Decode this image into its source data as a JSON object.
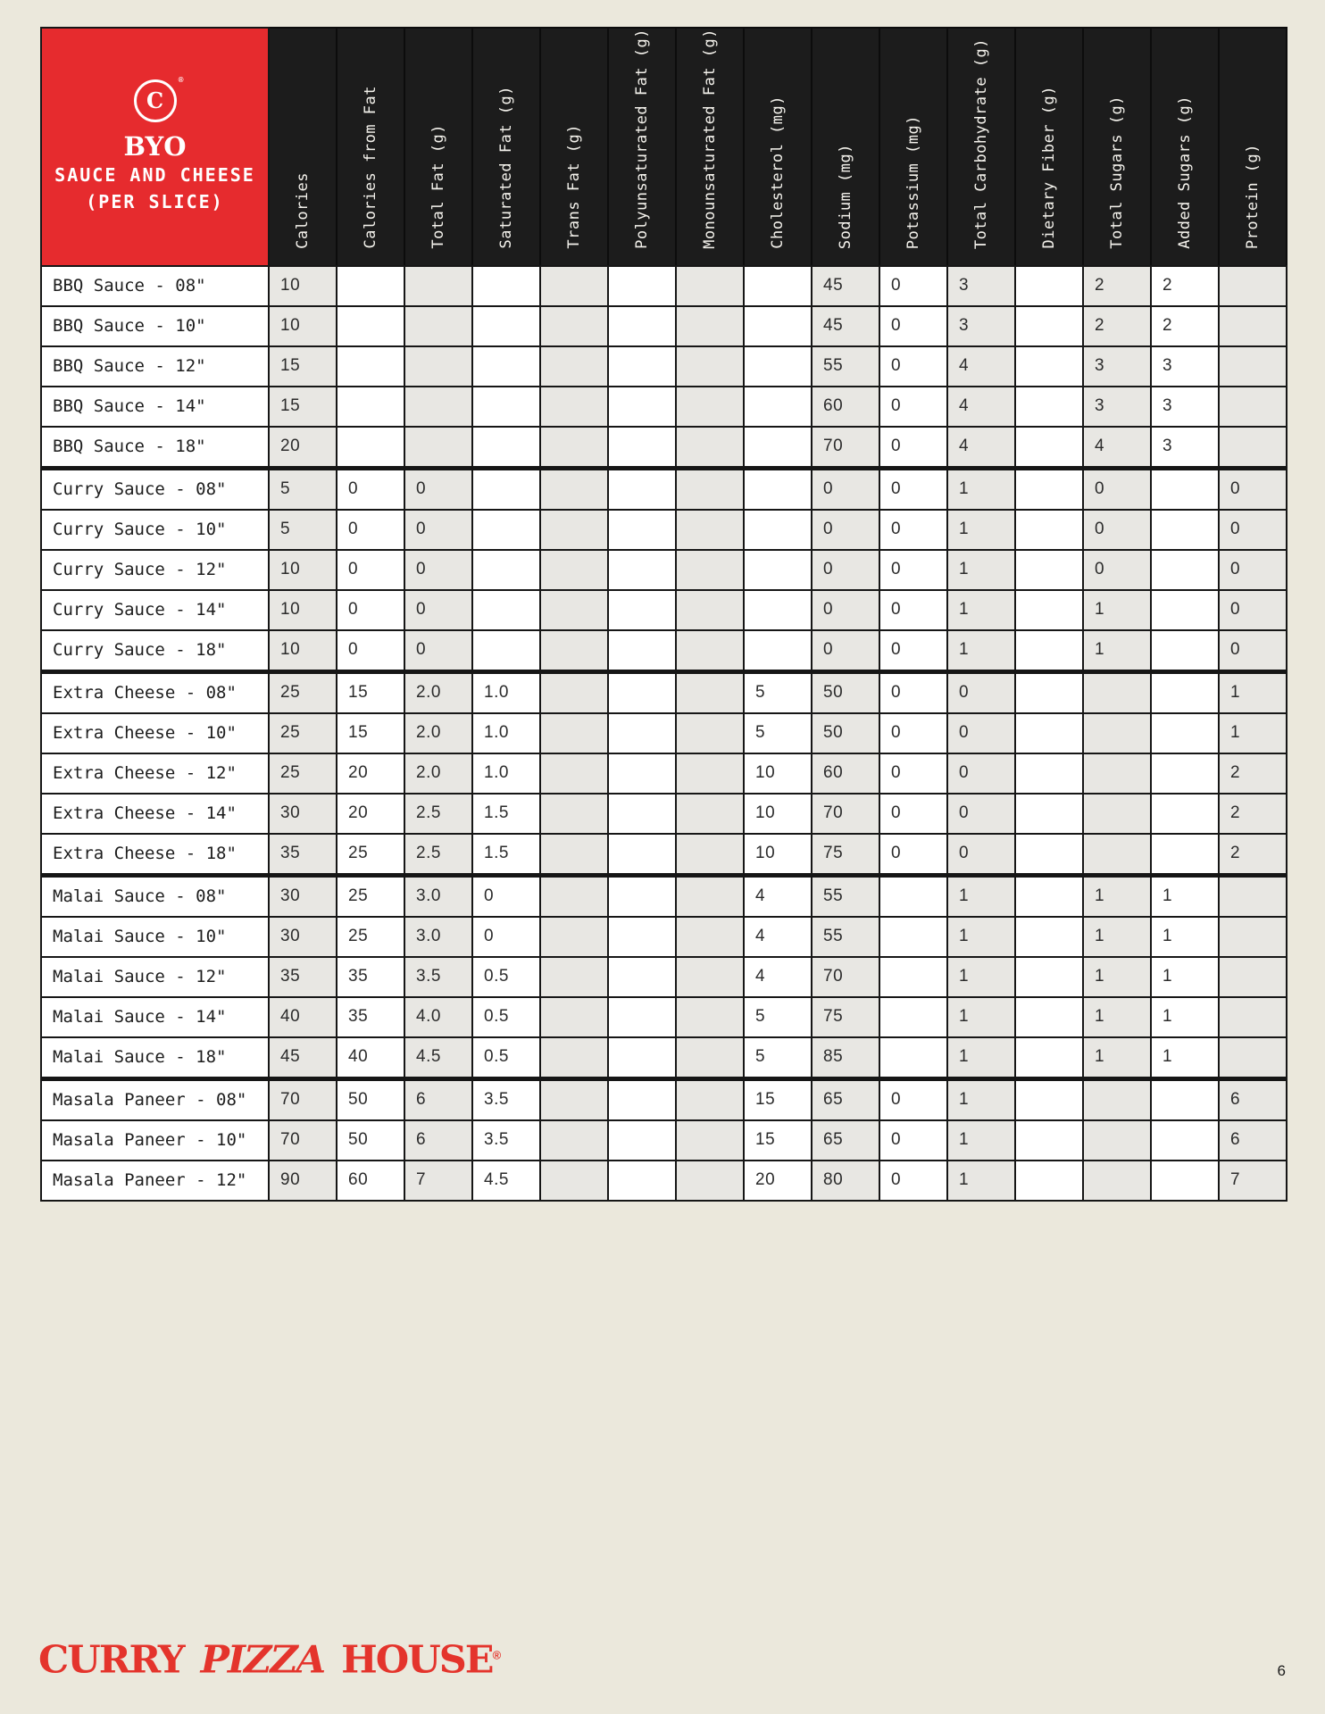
{
  "page": {
    "number": "6"
  },
  "brand": {
    "logo_glyph": "C",
    "logo_registered": "®",
    "footer_word1": "CURRY",
    "footer_word2": "PIZZA",
    "footer_word3": "HOUSE",
    "footer_registered": "®",
    "accent_red": "#e62b2e",
    "header_black": "#1c1c1c",
    "page_cream": "#ebe8dc",
    "cell_gray": "#e8e7e3"
  },
  "table": {
    "title": {
      "line1": "BYO",
      "line2": "SAUCE AND CHEESE",
      "line3": "(PER SLICE)"
    },
    "columns": [
      "Calories",
      "Calories from Fat",
      "Total Fat (g)",
      "Saturated Fat (g)",
      "Trans Fat (g)",
      "Polyunsaturated Fat (g)",
      "Monounsaturated Fat (g)",
      "Cholesterol (mg)",
      "Sodium (mg)",
      "Potassium (mg)",
      "Total Carbohydrate (g)",
      "Dietary Fiber (g)",
      "Total Sugars (g)",
      "Added Sugars (g)",
      "Protein (g)"
    ],
    "rows": [
      {
        "label": "BBQ Sauce - 08\"",
        "group_start": false,
        "values": [
          "10",
          "",
          "",
          "",
          "",
          "",
          "",
          "",
          "45",
          "0",
          "3",
          "",
          "2",
          "2",
          ""
        ]
      },
      {
        "label": "BBQ Sauce - 10\"",
        "group_start": false,
        "values": [
          "10",
          "",
          "",
          "",
          "",
          "",
          "",
          "",
          "45",
          "0",
          "3",
          "",
          "2",
          "2",
          ""
        ]
      },
      {
        "label": "BBQ Sauce - 12\"",
        "group_start": false,
        "values": [
          "15",
          "",
          "",
          "",
          "",
          "",
          "",
          "",
          "55",
          "0",
          "4",
          "",
          "3",
          "3",
          ""
        ]
      },
      {
        "label": "BBQ Sauce - 14\"",
        "group_start": false,
        "values": [
          "15",
          "",
          "",
          "",
          "",
          "",
          "",
          "",
          "60",
          "0",
          "4",
          "",
          "3",
          "3",
          ""
        ]
      },
      {
        "label": "BBQ Sauce - 18\"",
        "group_start": false,
        "values": [
          "20",
          "",
          "",
          "",
          "",
          "",
          "",
          "",
          "70",
          "0",
          "4",
          "",
          "4",
          "3",
          ""
        ]
      },
      {
        "label": "Curry Sauce - 08\"",
        "group_start": true,
        "values": [
          "5",
          "0",
          "0",
          "",
          "",
          "",
          "",
          "",
          "0",
          "0",
          "1",
          "",
          "0",
          "",
          "0"
        ]
      },
      {
        "label": "Curry Sauce - 10\"",
        "group_start": false,
        "values": [
          "5",
          "0",
          "0",
          "",
          "",
          "",
          "",
          "",
          "0",
          "0",
          "1",
          "",
          "0",
          "",
          "0"
        ]
      },
      {
        "label": "Curry Sauce - 12\"",
        "group_start": false,
        "values": [
          "10",
          "0",
          "0",
          "",
          "",
          "",
          "",
          "",
          "0",
          "0",
          "1",
          "",
          "0",
          "",
          "0"
        ]
      },
      {
        "label": "Curry Sauce - 14\"",
        "group_start": false,
        "values": [
          "10",
          "0",
          "0",
          "",
          "",
          "",
          "",
          "",
          "0",
          "0",
          "1",
          "",
          "1",
          "",
          "0"
        ]
      },
      {
        "label": "Curry Sauce - 18\"",
        "group_start": false,
        "values": [
          "10",
          "0",
          "0",
          "",
          "",
          "",
          "",
          "",
          "0",
          "0",
          "1",
          "",
          "1",
          "",
          "0"
        ]
      },
      {
        "label": "Extra Cheese - 08\"",
        "group_start": true,
        "values": [
          "25",
          "15",
          "2.0",
          "1.0",
          "",
          "",
          "",
          "5",
          "50",
          "0",
          "0",
          "",
          "",
          "",
          "1"
        ]
      },
      {
        "label": "Extra Cheese - 10\"",
        "group_start": false,
        "values": [
          "25",
          "15",
          "2.0",
          "1.0",
          "",
          "",
          "",
          "5",
          "50",
          "0",
          "0",
          "",
          "",
          "",
          "1"
        ]
      },
      {
        "label": "Extra Cheese - 12\"",
        "group_start": false,
        "values": [
          "25",
          "20",
          "2.0",
          "1.0",
          "",
          "",
          "",
          "10",
          "60",
          "0",
          "0",
          "",
          "",
          "",
          "2"
        ]
      },
      {
        "label": "Extra Cheese - 14\"",
        "group_start": false,
        "values": [
          "30",
          "20",
          "2.5",
          "1.5",
          "",
          "",
          "",
          "10",
          "70",
          "0",
          "0",
          "",
          "",
          "",
          "2"
        ]
      },
      {
        "label": "Extra Cheese - 18\"",
        "group_start": false,
        "values": [
          "35",
          "25",
          "2.5",
          "1.5",
          "",
          "",
          "",
          "10",
          "75",
          "0",
          "0",
          "",
          "",
          "",
          "2"
        ]
      },
      {
        "label": "Malai Sauce - 08\"",
        "group_start": true,
        "values": [
          "30",
          "25",
          "3.0",
          "0",
          "",
          "",
          "",
          "4",
          "55",
          "",
          "1",
          "",
          "1",
          "1",
          ""
        ]
      },
      {
        "label": "Malai Sauce - 10\"",
        "group_start": false,
        "values": [
          "30",
          "25",
          "3.0",
          "0",
          "",
          "",
          "",
          "4",
          "55",
          "",
          "1",
          "",
          "1",
          "1",
          ""
        ]
      },
      {
        "label": "Malai Sauce - 12\"",
        "group_start": false,
        "values": [
          "35",
          "35",
          "3.5",
          "0.5",
          "",
          "",
          "",
          "4",
          "70",
          "",
          "1",
          "",
          "1",
          "1",
          ""
        ]
      },
      {
        "label": "Malai Sauce - 14\"",
        "group_start": false,
        "values": [
          "40",
          "35",
          "4.0",
          "0.5",
          "",
          "",
          "",
          "5",
          "75",
          "",
          "1",
          "",
          "1",
          "1",
          ""
        ]
      },
      {
        "label": "Malai Sauce - 18\"",
        "group_start": false,
        "values": [
          "45",
          "40",
          "4.5",
          "0.5",
          "",
          "",
          "",
          "5",
          "85",
          "",
          "1",
          "",
          "1",
          "1",
          ""
        ]
      },
      {
        "label": "Masala Paneer - 08\"",
        "group_start": true,
        "values": [
          "70",
          "50",
          "6",
          "3.5",
          "",
          "",
          "",
          "15",
          "65",
          "0",
          "1",
          "",
          "",
          "",
          "6"
        ]
      },
      {
        "label": "Masala Paneer - 10\"",
        "group_start": false,
        "values": [
          "70",
          "50",
          "6",
          "3.5",
          "",
          "",
          "",
          "15",
          "65",
          "0",
          "1",
          "",
          "",
          "",
          "6"
        ]
      },
      {
        "label": "Masala Paneer - 12\"",
        "group_start": false,
        "values": [
          "90",
          "60",
          "7",
          "4.5",
          "",
          "",
          "",
          "20",
          "80",
          "0",
          "1",
          "",
          "",
          "",
          "7"
        ]
      }
    ]
  }
}
